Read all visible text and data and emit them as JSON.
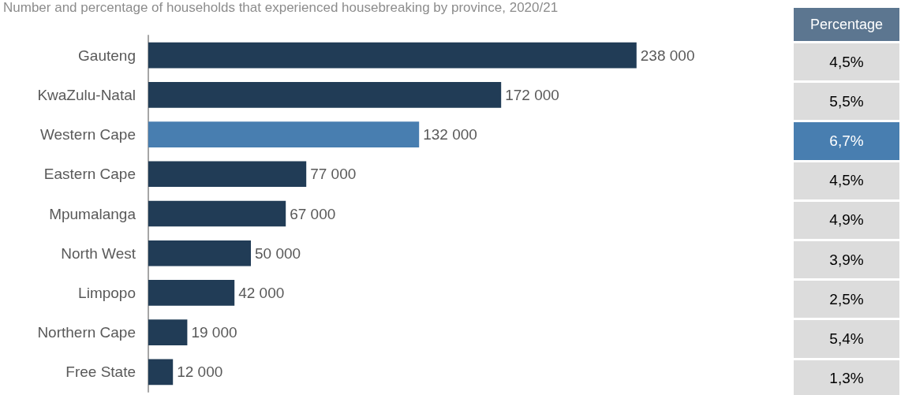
{
  "chart_data": [
    {
      "type": "bar",
      "title": "Number and percentage of households that experienced housebreaking by province, 2020/21",
      "orientation": "horizontal",
      "data_labels": true,
      "categories": [
        "Gauteng",
        "KwaZulu-Natal",
        "Western Cape",
        "Eastern Cape",
        "Mpumalanga",
        "North West",
        "Limpopo",
        "Northern Cape",
        "Free State"
      ],
      "values": [
        238000,
        172000,
        132000,
        77000,
        67000,
        50000,
        42000,
        19000,
        12000
      ],
      "colors": [
        "#213c56",
        "#213c56",
        "#487eb0",
        "#213c56",
        "#213c56",
        "#213c56",
        "#213c56",
        "#213c56",
        "#213c56"
      ]
    },
    {
      "type": "other",
      "title": "Percentage",
      "values": [
        4.5,
        5.5,
        6.7,
        4.5,
        4.9,
        3.9,
        2.5,
        5.4,
        1.3
      ],
      "value_labels": [
        "4,5%",
        "5,5%",
        "6,7%",
        "4,5%",
        "4,9%",
        "3,9%",
        "2,5%",
        "5,4%",
        "1,3%"
      ],
      "colors": [
        "#dcdcdc",
        "#dcdcdc",
        "#487eb0",
        "#dcdcdc",
        "#dcdcdc",
        "#dcdcdc",
        "#dcdcdc",
        "#dcdcdc",
        "#dcdcdc"
      ]
    }
  ]
}
